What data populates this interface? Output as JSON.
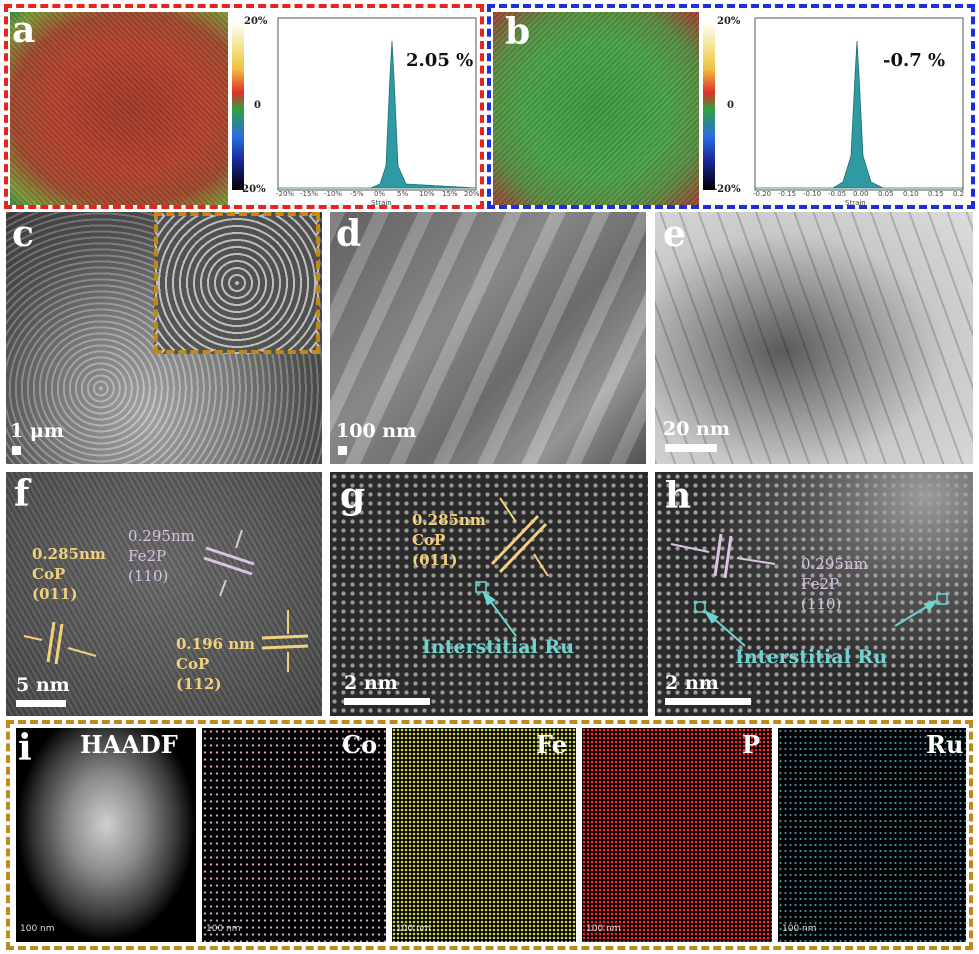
{
  "panels": {
    "a": {
      "letter": "a",
      "colorbar_top": "20%",
      "colorbar_mid": "0",
      "colorbar_bottom": "-20%",
      "strain_value": "2.05 %",
      "xlabel": "Strain",
      "ticks": [
        "-20%",
        "-15%",
        "-10%",
        "-5%",
        "0%",
        "5%",
        "10%",
        "15%",
        "20%"
      ]
    },
    "b": {
      "letter": "b",
      "colorbar_top": "20%",
      "colorbar_mid": "0",
      "colorbar_bottom": "-20%",
      "strain_value": "-0.7 %",
      "xlabel": "Strain",
      "ticks": [
        "-0.20",
        "-0.15",
        "-0.10",
        "-0.05",
        "0.00",
        "0.05",
        "0.10",
        "0.15",
        "0.2"
      ]
    },
    "c": {
      "letter": "c",
      "scale": "1 μm"
    },
    "d": {
      "letter": "d",
      "scale": "100 nm"
    },
    "e": {
      "letter": "e",
      "scale": "20 nm"
    },
    "f": {
      "letter": "f",
      "scale": "5 nm",
      "label1": [
        "0.285nm",
        "CoP",
        "(011)"
      ],
      "label2": [
        "0.295nm",
        "Fe2P",
        "(110)"
      ],
      "label3": [
        "0.196 nm",
        "CoP",
        "(112)"
      ]
    },
    "g": {
      "letter": "g",
      "scale": "2 nm",
      "label1": [
        "0.285nm",
        "CoP",
        "(011)"
      ],
      "ru": "Interstitial Ru"
    },
    "h": {
      "letter": "h",
      "scale": "2 nm",
      "label1": [
        "0.295nm",
        "Fe2P",
        "(110)"
      ],
      "ru": "Interstitial Ru"
    },
    "i": {
      "letter": "i",
      "maps": [
        {
          "label": "HAADF",
          "scale": "100 nm",
          "color": "#e8e8e8"
        },
        {
          "label": "Co",
          "scale": "100 nm",
          "color": "#d79bd6"
        },
        {
          "label": "Fe",
          "scale": "100 nm",
          "color": "#d8d84a"
        },
        {
          "label": "P",
          "scale": "100 nm",
          "color": "#ff2a2a"
        },
        {
          "label": "Ru",
          "scale": "100 nm",
          "color": "#3f8fb0"
        }
      ]
    }
  },
  "colors": {
    "red_frame": "#e8231e",
    "blue_frame": "#1d2ee0",
    "gold_frame": "#c08a1a",
    "yellow_label": "#f1d27c",
    "lilac_label": "#d8c3e3",
    "cyan_label": "#6fd3cf"
  }
}
